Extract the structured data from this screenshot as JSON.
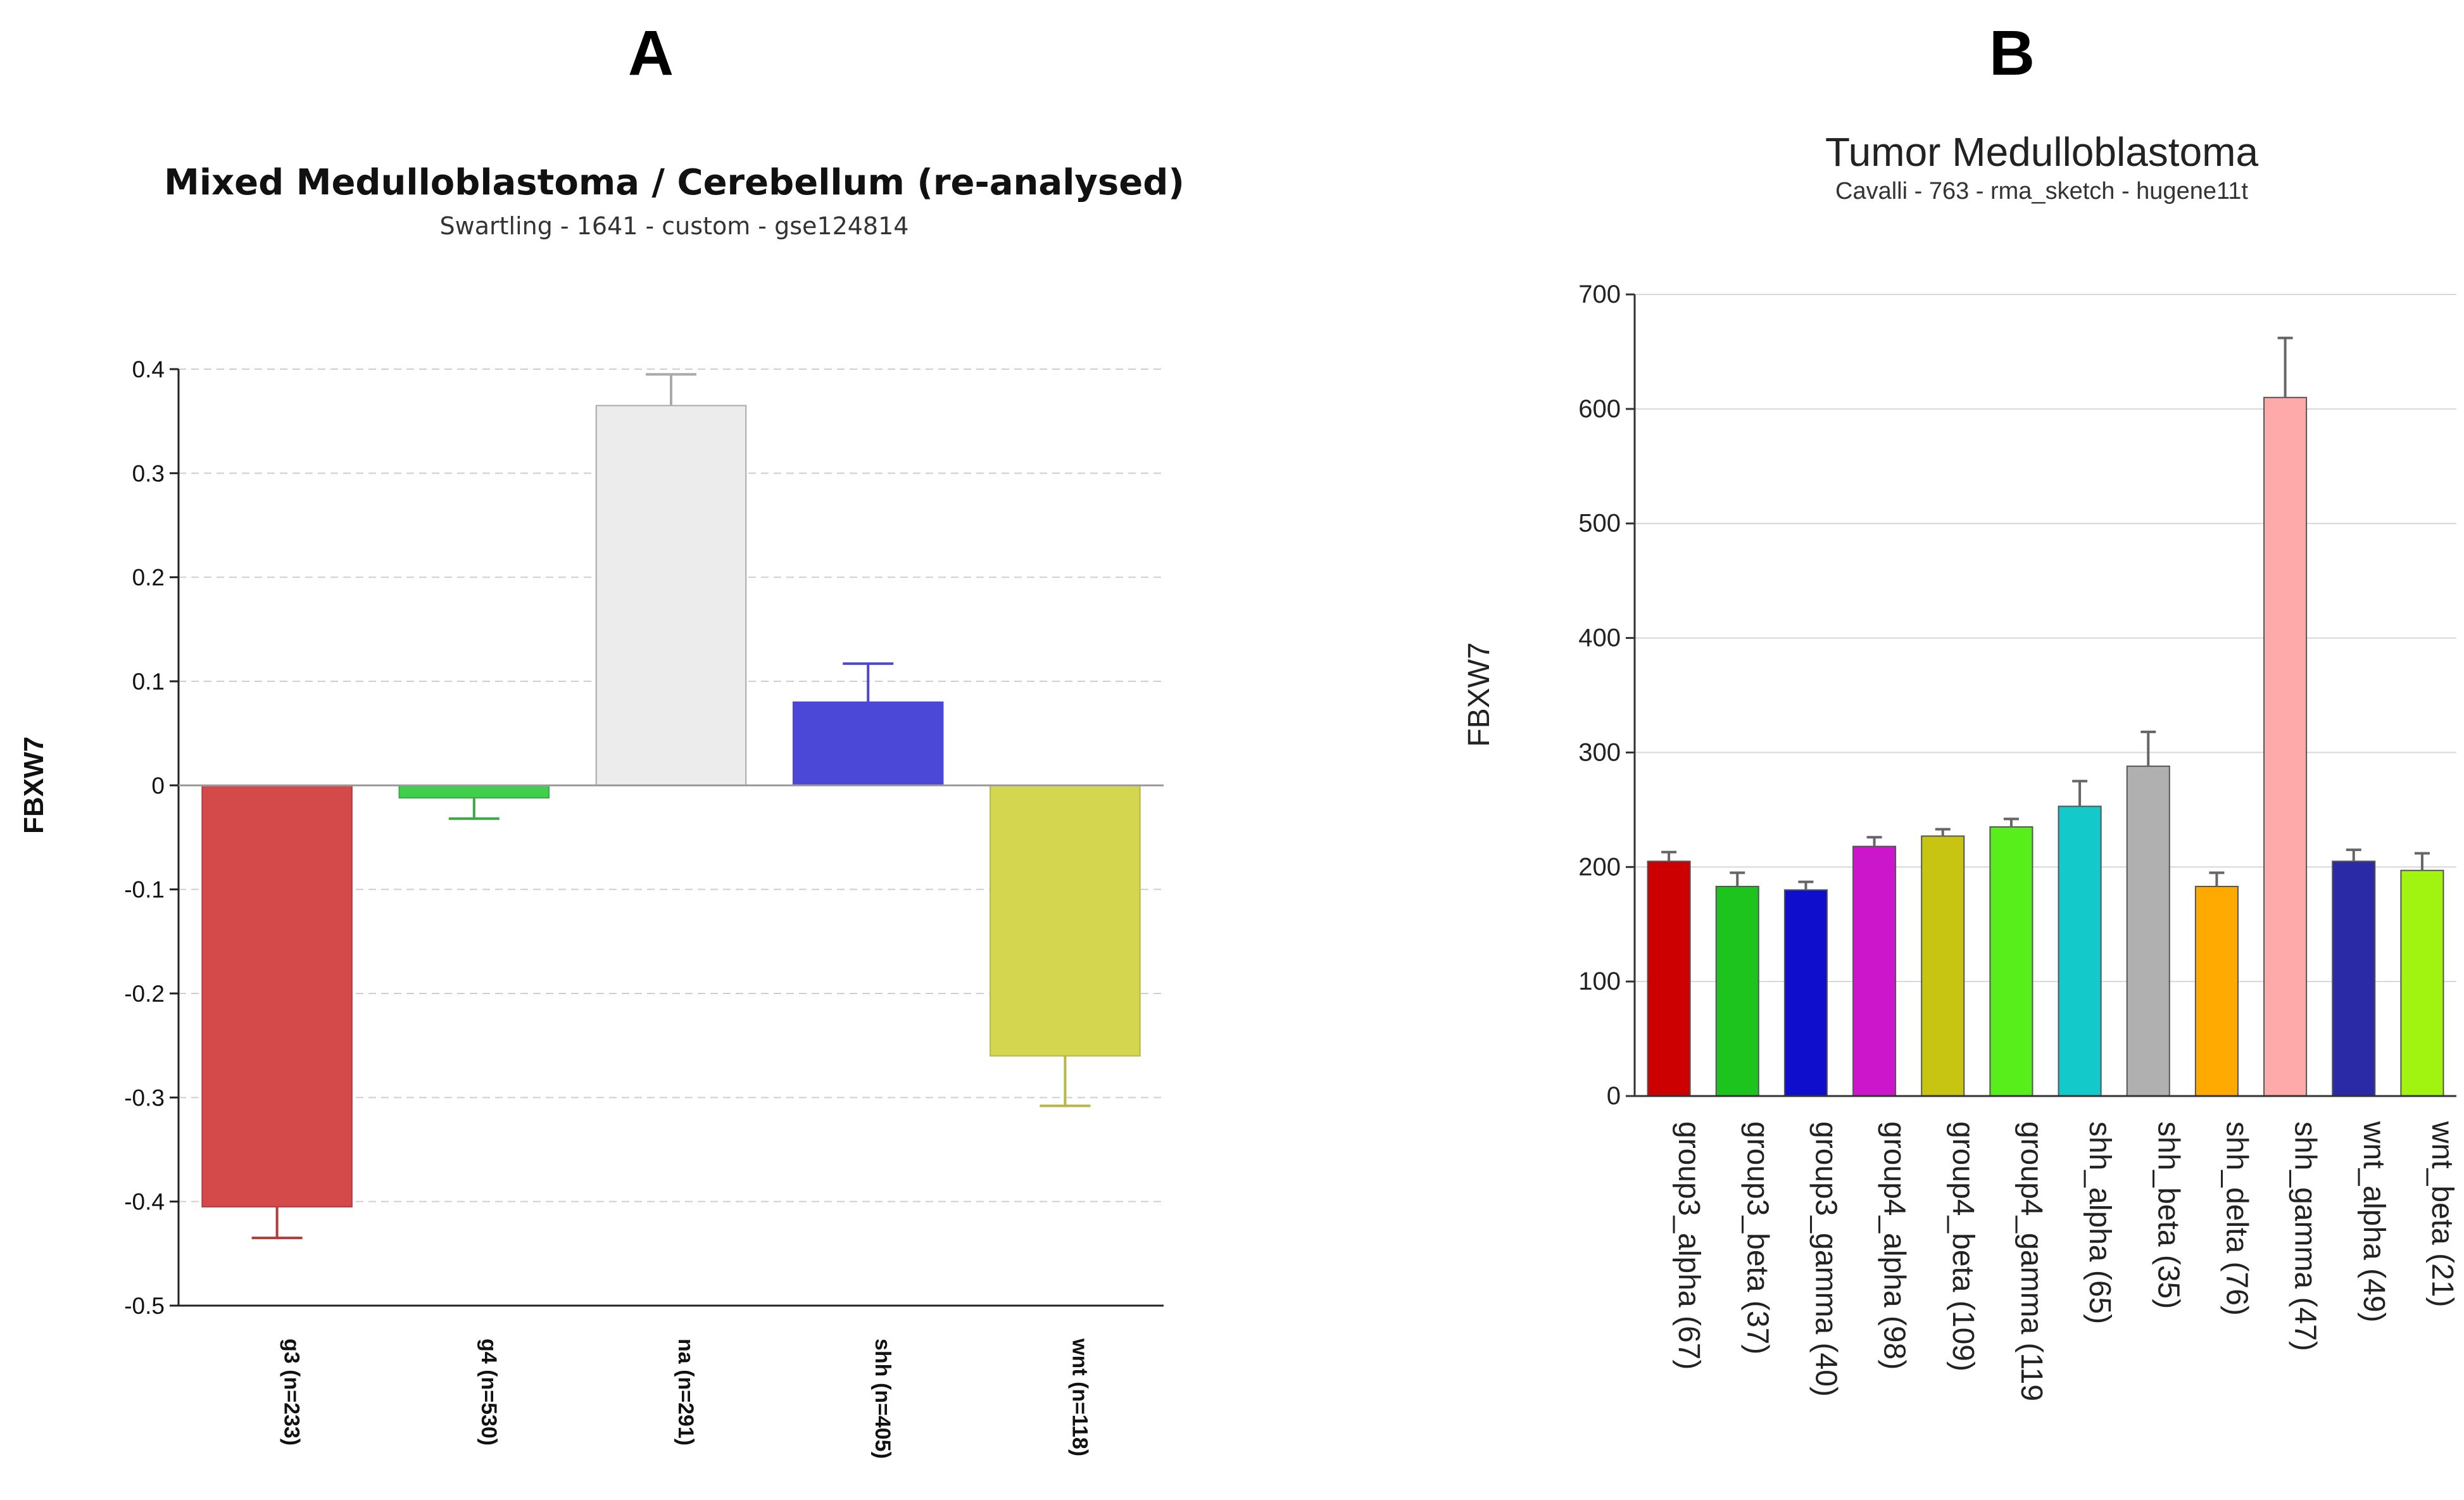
{
  "panels": {
    "a": {
      "letter": "A"
    },
    "b": {
      "letter": "B"
    }
  },
  "chart_data": [
    {
      "type": "bar",
      "title": "Mixed Medulloblastoma / Cerebellum (re-analysed)",
      "subtitle": "Swartling - 1641 - custom - gse124814",
      "xlabel": "",
      "ylabel": "FBXW7",
      "ylim": [
        -0.5,
        0.4
      ],
      "yticks": [
        0.4,
        0.3,
        0.2,
        0.1,
        0,
        -0.1,
        -0.2,
        -0.3,
        -0.4,
        -0.5
      ],
      "ytick_labels": [
        "0.4",
        "0.3",
        "0.2",
        "0.1",
        "0",
        "-0.1",
        "-0.2",
        "-0.3",
        "-0.4",
        "-0.5"
      ],
      "grid": true,
      "categories": [
        "g3 (n=233)",
        "g4 (n=530)",
        "na (n=291)",
        "shh (n=405)",
        "wnt (n=118)"
      ],
      "values": [
        -0.405,
        -0.012,
        0.365,
        0.08,
        -0.26
      ],
      "error_ends": [
        -0.435,
        -0.032,
        0.395,
        0.117,
        -0.308
      ],
      "colors": [
        "#d44a4a",
        "#3fcf4a",
        "#ececec",
        "#4b48d8",
        "#d4d64f"
      ],
      "error_colors": [
        "#b43a3a",
        "#3aaa42",
        "#aaaaaa",
        "#4b48d8",
        "#b6b843"
      ]
    },
    {
      "type": "bar",
      "title": "Tumor Medulloblastoma",
      "subtitle": "Cavalli - 763 - rma_sketch - hugene11t",
      "xlabel": "",
      "ylabel": "FBXW7",
      "ylim": [
        0,
        700
      ],
      "yticks": [
        0,
        100,
        200,
        300,
        400,
        500,
        600,
        700
      ],
      "ytick_labels": [
        "0",
        "100",
        "200",
        "300",
        "400",
        "500",
        "600",
        "700"
      ],
      "grid": true,
      "categories": [
        "group3_alpha (67)",
        "group3_beta (37)",
        "group3_gamma (40)",
        "group4_alpha (98)",
        "group4_beta (109)",
        "group4_gamma (119",
        "shh_alpha (65)",
        "shh_beta (35)",
        "shh_delta (76)",
        "shh_gamma (47)",
        "wnt_alpha (49)",
        "wnt_beta (21)"
      ],
      "values": [
        205,
        183,
        180,
        218,
        227,
        235,
        253,
        288,
        183,
        610,
        205,
        197
      ],
      "error_ends": [
        213,
        195,
        187,
        226,
        233,
        242,
        275,
        318,
        195,
        662,
        215,
        212
      ],
      "colors": [
        "#cc0000",
        "#1ec41e",
        "#0e0ecc",
        "#cc16cc",
        "#c8c412",
        "#57ee1c",
        "#14c9c9",
        "#b0b0b0",
        "#ffaa00",
        "#ffaaaa",
        "#2a2aa6",
        "#a0f410"
      ]
    }
  ]
}
